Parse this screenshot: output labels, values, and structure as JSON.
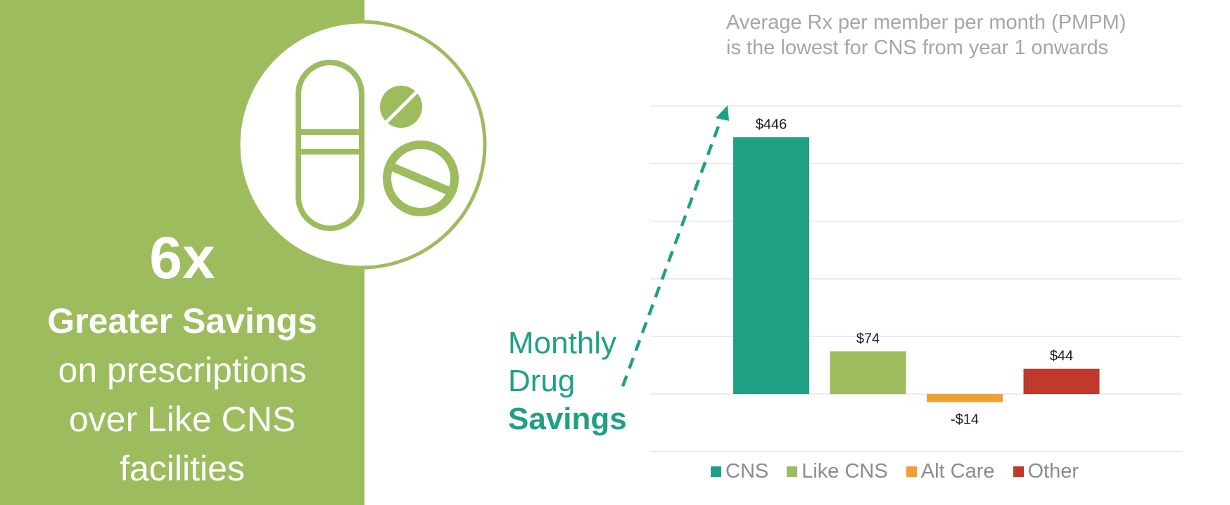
{
  "headline": {
    "stat": "6x",
    "strong_line": "Greater Savings",
    "lines": [
      "on prescriptions",
      "over Like CNS",
      "facilities"
    ]
  },
  "side_label": {
    "line1": "Monthly",
    "line2": "Drug",
    "line3": "Savings"
  },
  "icon": "pills-icon",
  "colors": {
    "panel": "#9dbc5e",
    "teal": "#1fa085",
    "green": "#9dbc5e",
    "orange": "#f0a030",
    "red": "#c0392b",
    "grid": "#e6e6e6"
  },
  "chart_data": {
    "type": "bar",
    "title_lines": [
      "Average Rx per member per month (PMPM)",
      "is the lowest for CNS from year 1 onwards"
    ],
    "categories": [
      "CNS",
      "Like CNS",
      "Alt Care",
      "Other"
    ],
    "values": [
      446,
      74,
      -14,
      44
    ],
    "data_labels": [
      "$446",
      "$74",
      "-$14",
      "$44"
    ],
    "colors": [
      "#1fa085",
      "#9dbc5e",
      "#f0a030",
      "#c0392b"
    ],
    "ylim": [
      -100,
      500
    ],
    "grid": true,
    "legend": "bottom",
    "xlabel": "",
    "ylabel": ""
  }
}
